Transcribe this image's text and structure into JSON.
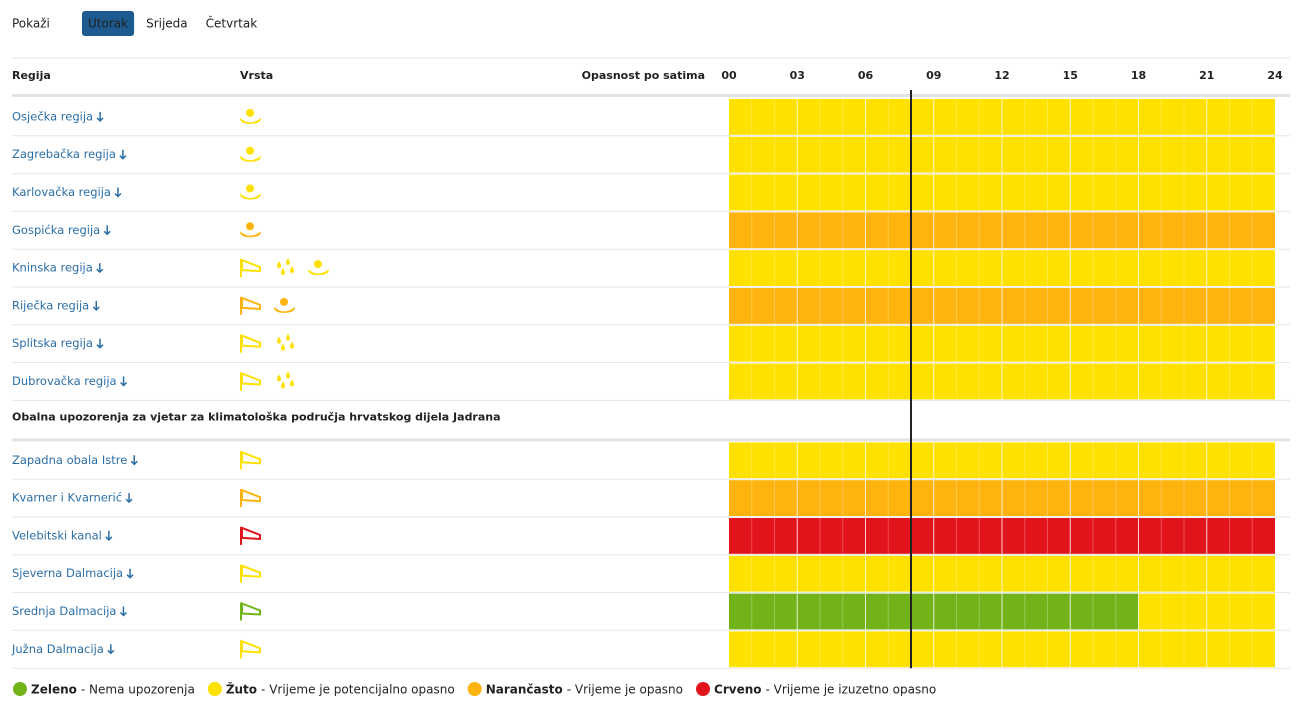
{
  "tabs": {
    "label": "Pokaži",
    "days": [
      "Utorak",
      "Srijeda",
      "Četvrtak"
    ],
    "selected": 0
  },
  "table": {
    "headers": [
      "Regija",
      "Vrsta",
      "Opasnost po satima"
    ],
    "hours": [
      "00",
      "03",
      "06",
      "09",
      "12",
      "15",
      "18",
      "21",
      "24"
    ],
    "current_hour": 8,
    "regions": [
      {
        "name": "Osječka regija",
        "segments": [
          {
            "start": 0,
            "end": 24,
            "color": "#ffe100"
          }
        ]
      },
      {
        "name": "Zagrebačka regija",
        "segments": [
          {
            "start": 0,
            "end": 24,
            "color": "#ffe100"
          }
        ]
      },
      {
        "name": "Karlovačka regija",
        "segments": [
          {
            "start": 0,
            "end": 24,
            "color": "#ffe100"
          }
        ]
      },
      {
        "name": "Gospićka regija",
        "segments": [
          {
            "start": 0,
            "end": 24,
            "color": "#ffb30f"
          }
        ]
      },
      {
        "name": "Kninska regija",
        "segments": [
          {
            "start": 0,
            "end": 24,
            "color": "#ffe100"
          }
        ]
      },
      {
        "name": "Riječka regija",
        "segments": [
          {
            "start": 0,
            "end": 24,
            "color": "#ffb30f"
          }
        ]
      },
      {
        "name": "Splitska regija",
        "segments": [
          {
            "start": 0,
            "end": 24,
            "color": "#ffe100"
          }
        ]
      },
      {
        "name": "Dubrovačka regija",
        "segments": [
          {
            "start": 0,
            "end": 24,
            "color": "#ffe100"
          }
        ]
      }
    ],
    "coastal_title": "Obalna upozorenja za vjetar za klimatološka područja hrvatskog dijela Jadrana",
    "coastal": [
      {
        "name": "Zapadna obala Istre",
        "segments": [
          {
            "start": 0,
            "end": 24,
            "color": "#ffe100"
          }
        ]
      },
      {
        "name": "Kvarner i Kvarnerić",
        "segments": [
          {
            "start": 0,
            "end": 24,
            "color": "#ffb30f"
          }
        ]
      },
      {
        "name": "Velebitski kanal",
        "segments": [
          {
            "start": 0,
            "end": 24,
            "color": "#e2141b"
          }
        ]
      },
      {
        "name": "Sjeverna Dalmacija",
        "segments": [
          {
            "start": 0,
            "end": 24,
            "color": "#ffe100"
          }
        ]
      },
      {
        "name": "Srednja Dalmacija",
        "segments": [
          {
            "start": 0,
            "end": 18,
            "color": "#73b31a"
          },
          {
            "start": 18,
            "end": 24,
            "color": "#ffe100"
          }
        ]
      },
      {
        "name": "Južna Dalmacija",
        "segments": [
          {
            "start": 0,
            "end": 24,
            "color": "#ffe100"
          }
        ]
      }
    ]
  },
  "legend": [
    {
      "color": "#73b31a",
      "label": "Zeleno",
      "description": "- Nema upozorenja"
    },
    {
      "color": "#ffe100",
      "label": "Žuto",
      "description": "- Vrijeme je potencijalno opasno"
    },
    {
      "color": "#ffb30f",
      "label": "Narančasto",
      "description": "- Vrijeme je opasno"
    },
    {
      "color": "#e2141b",
      "label": "Crveno",
      "description": "- Vrijeme je izuzetno opasno"
    }
  ]
}
